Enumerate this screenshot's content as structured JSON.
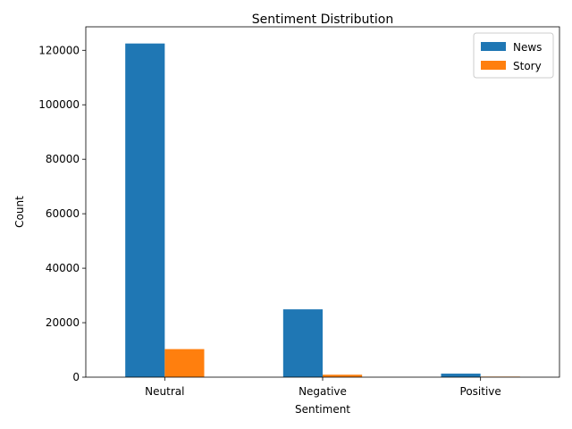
{
  "chart_data": {
    "type": "bar",
    "title": "Sentiment Distribution",
    "xlabel": "Sentiment",
    "ylabel": "Count",
    "categories": [
      "Neutral",
      "Negative",
      "Positive"
    ],
    "series": [
      {
        "name": "News",
        "values": [
          122500,
          24900,
          1300
        ],
        "color": "#1f77b4"
      },
      {
        "name": "Story",
        "values": [
          10300,
          900,
          200
        ],
        "color": "#ff7f0e"
      }
    ],
    "ylim": [
      0,
      128625
    ],
    "yticks": [
      0,
      20000,
      40000,
      60000,
      80000,
      100000,
      120000
    ],
    "grid": false,
    "legend_position": "top-right"
  }
}
